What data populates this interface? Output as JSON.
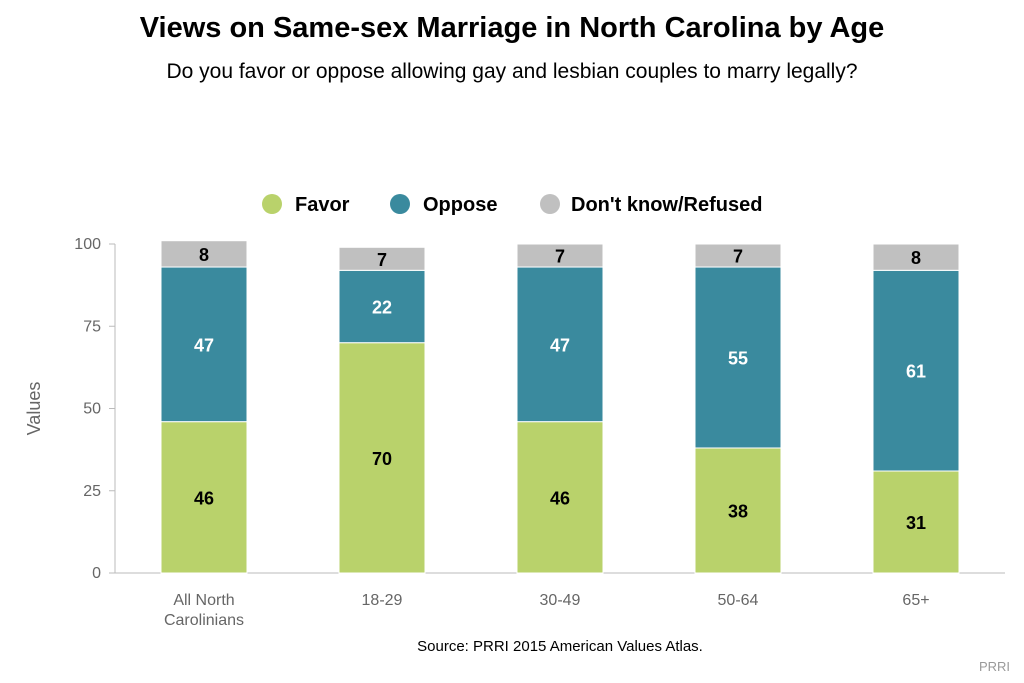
{
  "header": {
    "title": "Views on Same-sex Marriage in North Carolina by Age",
    "subtitle": "Do you favor or oppose allowing gay and lesbian couples to marry legally?"
  },
  "footer": {
    "source": "Source: PRRI 2015 American Values Atlas.",
    "brand": "PRRI"
  },
  "chart_data": {
    "type": "bar",
    "stacked": true,
    "title": "Views on Same-sex Marriage in North Carolina by Age",
    "subtitle": "Do you favor or oppose allowing gay and lesbian couples to marry legally?",
    "xlabel": "",
    "ylabel": "Values",
    "ylim": [
      0,
      100
    ],
    "yticks": [
      0,
      25,
      50,
      75,
      100
    ],
    "categories": [
      "All North Carolinians",
      "18-29",
      "30-49",
      "50-64",
      "65+"
    ],
    "category_lines": [
      [
        "All North",
        "Carolinians"
      ],
      [
        "18-29"
      ],
      [
        "30-49"
      ],
      [
        "50-64"
      ],
      [
        "65+"
      ]
    ],
    "series": [
      {
        "name": "Favor",
        "color": "#b9d26b",
        "label_color": "#000000",
        "values": [
          46,
          70,
          46,
          38,
          31
        ]
      },
      {
        "name": "Oppose",
        "color": "#3a8a9e",
        "label_color": "#ffffff",
        "values": [
          47,
          22,
          47,
          55,
          61
        ]
      },
      {
        "name": "Don't know/Refused",
        "color": "#c0c0c0",
        "label_color": "#000000",
        "values": [
          8,
          7,
          7,
          7,
          8
        ]
      }
    ],
    "legend_position": "top-center",
    "grid": false
  }
}
